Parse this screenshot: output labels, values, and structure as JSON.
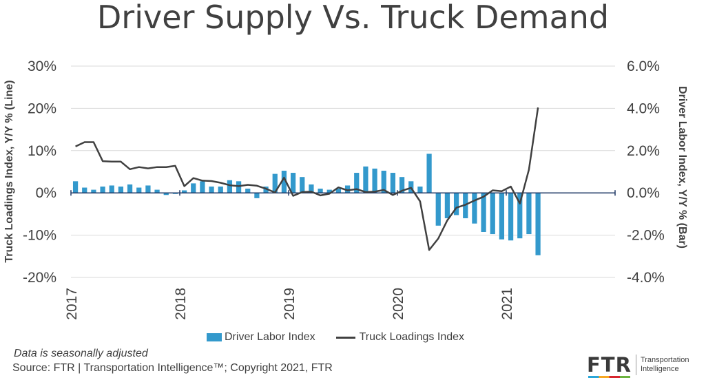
{
  "title": "Driver Supply Vs. Truck Demand",
  "chart_data": {
    "type": "bar+line",
    "title": "Driver Supply Vs. Truck Demand",
    "x_start": "2017-01",
    "x_tick_labels": [
      "2017",
      "2018",
      "2019",
      "2020",
      "2021"
    ],
    "left_axis": {
      "label": "Truck Loadings Index, Y/Y % (Line)",
      "range": [
        -20,
        30
      ],
      "tick_labels": [
        "30%",
        "20%",
        "10%",
        "0%",
        "-10%",
        "-20%"
      ],
      "tick_values": [
        30,
        20,
        10,
        0,
        -10,
        -20
      ]
    },
    "right_axis": {
      "label": "Driver Labor Index, Y/Y % (Bar)",
      "range": [
        -4,
        6
      ],
      "tick_labels": [
        "6.0%",
        "4.0%",
        "2.0%",
        "0.0%",
        "-2.0%",
        "-4.0%"
      ],
      "tick_values": [
        6,
        4,
        2,
        0,
        -2,
        -4
      ]
    },
    "grid": true,
    "legend_position": "bottom",
    "series": [
      {
        "name": "Driver Labor Index",
        "type": "bar",
        "axis": "right",
        "color": "#3399cc",
        "values": [
          0.55,
          0.25,
          0.15,
          0.3,
          0.35,
          0.3,
          0.4,
          0.25,
          0.35,
          0.15,
          -0.1,
          -0.05,
          0.12,
          0.45,
          0.55,
          0.3,
          0.3,
          0.6,
          0.55,
          0.2,
          -0.25,
          0.3,
          0.9,
          1.05,
          0.95,
          0.75,
          0.4,
          0.2,
          0.15,
          0.2,
          0.35,
          0.95,
          1.25,
          1.15,
          1.05,
          0.95,
          0.75,
          0.55,
          0.3,
          1.85,
          -1.55,
          -1.2,
          -1.05,
          -1.2,
          -1.45,
          -1.85,
          -1.95,
          -2.2,
          -2.25,
          -2.15,
          -1.95,
          -2.95
        ]
      },
      {
        "name": "Truck Loadings Index",
        "type": "line",
        "axis": "left",
        "color": "#404040",
        "values": [
          11,
          12,
          12,
          7.5,
          7.4,
          7.4,
          5.6,
          6.1,
          5.8,
          6.1,
          6.1,
          6.4,
          1.6,
          3.5,
          2.9,
          2.8,
          2.4,
          1.8,
          1.6,
          1.9,
          1.7,
          1.0,
          0.1,
          3.6,
          -0.7,
          0.2,
          0.3,
          -0.6,
          -0.2,
          1.3,
          0.6,
          0.9,
          0.2,
          0.3,
          0.7,
          -0.5,
          0.5,
          1.2,
          -2.0,
          -13.5,
          -10.8,
          -6.5,
          -3.5,
          -2.8,
          -1.8,
          -0.9,
          0.6,
          0.4,
          1.5,
          -2.5,
          5.5,
          20.2
        ]
      }
    ]
  },
  "footer": {
    "note": "Data is seasonally adjusted",
    "source": "Source: FTR | Transportation Intelligence™; Copyright 2021, FTR"
  },
  "logo": {
    "mark": "FTR",
    "tagline_line1": "Transportation",
    "tagline_line2": "Intelligence"
  }
}
